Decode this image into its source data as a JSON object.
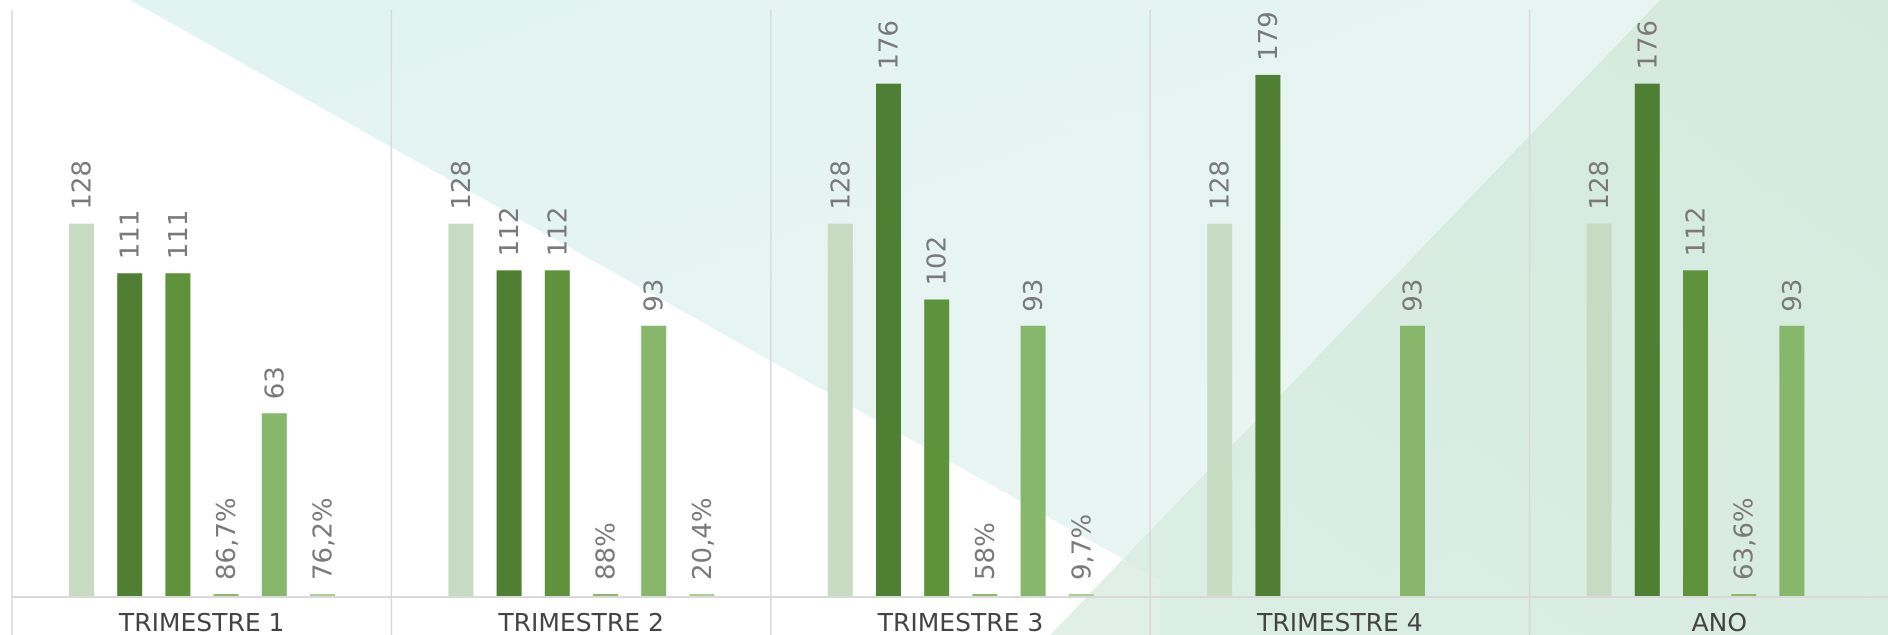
{
  "chart_data": {
    "type": "bar",
    "categories": [
      "TRIMESTRE 1",
      "TRIMESTRE 2",
      "TRIMESTRE 3",
      "TRIMESTRE 4",
      "ANO"
    ],
    "series": [
      {
        "color": "#c6dbc1",
        "values": [
          128,
          128,
          128,
          128,
          128
        ],
        "labels": [
          "128",
          "128",
          "128",
          "128",
          "128"
        ]
      },
      {
        "color": "#4f7f33",
        "values": [
          111,
          112,
          176,
          179,
          176
        ],
        "labels": [
          "111",
          "112",
          "176",
          "179",
          "176"
        ]
      },
      {
        "color": "#5e923b",
        "values": [
          111,
          112,
          102,
          null,
          112
        ],
        "labels": [
          "111",
          "112",
          "102",
          "",
          "112"
        ]
      },
      {
        "color": "#8db86c",
        "values": [
          0.867,
          0.88,
          0.58,
          null,
          0.636
        ],
        "labels": [
          "86,7%",
          "88%",
          "58%",
          "",
          "63,6%"
        ]
      },
      {
        "color": "#86b76b",
        "values": [
          63,
          93,
          93,
          93,
          93
        ],
        "labels": [
          "63",
          "93",
          "93",
          "93",
          "93"
        ]
      },
      {
        "color": "#a9cf95",
        "values": [
          0.762,
          0.204,
          0.097,
          null,
          null
        ],
        "labels": [
          "76,2%",
          "20,4%",
          "9,7%",
          "",
          ""
        ]
      }
    ],
    "ylim": [
      0,
      200
    ],
    "grid": false,
    "legend": "none",
    "colors": {
      "background": "#ffffff",
      "decor_teal": "#d6efec",
      "decor_green": "#cfe8d8",
      "divider": "#d9d9d9",
      "axis": "#d9d9d9",
      "value_label": "#7a7a7a",
      "category_label": "#444444"
    }
  }
}
